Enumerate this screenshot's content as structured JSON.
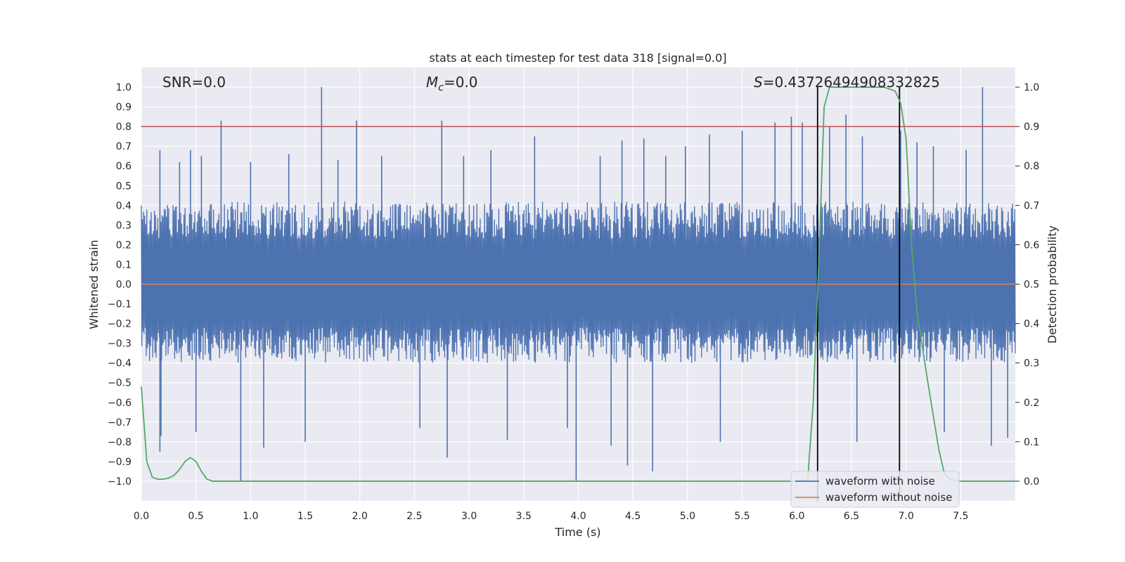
{
  "chart_data": {
    "type": "line",
    "title": "stats at each timestep for test data 318 [signal=0.0]",
    "xlabel": "Time (s)",
    "ylabel": "Whitened strain",
    "y2label": "Detection probability",
    "xlim": [
      0.0,
      8.0
    ],
    "ylim": [
      -1.1,
      1.1
    ],
    "y2lim": [
      -0.05,
      1.05
    ],
    "x_ticks": [
      0.0,
      0.5,
      1.0,
      1.5,
      2.0,
      2.5,
      3.0,
      3.5,
      4.0,
      4.5,
      5.0,
      5.5,
      6.0,
      6.5,
      7.0,
      7.5
    ],
    "x_tick_labels": [
      "0.0",
      "0.5",
      "1.0",
      "1.5",
      "2.0",
      "2.5",
      "3.0",
      "3.5",
      "4.0",
      "4.5",
      "5.0",
      "5.5",
      "6.0",
      "6.5",
      "7.0",
      "7.5"
    ],
    "y_ticks": [
      1.0,
      0.9,
      0.8,
      0.7,
      0.6,
      0.5,
      0.4,
      0.3,
      0.2,
      0.1,
      0.0,
      -0.1,
      -0.2,
      -0.3,
      -0.4,
      -0.5,
      -0.6,
      -0.7,
      -0.8,
      -0.9,
      -1.0
    ],
    "y_tick_labels": [
      "1.0",
      "0.9",
      "0.8",
      "0.7",
      "0.6",
      "0.5",
      "0.4",
      "0.3",
      "0.2",
      "0.1",
      "0.0",
      "−0.1",
      "−0.2",
      "−0.3",
      "−0.4",
      "−0.5",
      "−0.6",
      "−0.7",
      "−0.8",
      "−0.9",
      "−1.0"
    ],
    "y2_ticks": [
      1.0,
      0.9,
      0.8,
      0.7,
      0.6,
      0.5,
      0.4,
      0.3,
      0.2,
      0.1,
      0.0
    ],
    "y2_tick_labels": [
      "1.0",
      "0.9",
      "0.8",
      "0.7",
      "0.6",
      "0.5",
      "0.4",
      "0.3",
      "0.2",
      "0.1",
      "0.0"
    ],
    "annotations": {
      "snr": "SNR=0.0",
      "mc_symbol": "M",
      "mc_subscript": "c",
      "mc_value": "=0.0",
      "s_symbol": "S",
      "s_value": "=0.43726494908332825"
    },
    "threshold": {
      "value": 0.8,
      "color": "#c44e52"
    },
    "zero_line": {
      "value": 0.0,
      "color": "#dd8452"
    },
    "detection_window": {
      "start": 6.19,
      "end": 6.94,
      "color": "#000000"
    },
    "series": [
      {
        "name": "waveform with noise",
        "color": "#4c72b0",
        "kind": "noise",
        "band_max": 0.42,
        "band_min": -0.4,
        "spikes": [
          [
            0.17,
            0.68
          ],
          [
            0.17,
            -0.85
          ],
          [
            0.18,
            -0.77
          ],
          [
            0.35,
            0.62
          ],
          [
            0.45,
            0.68
          ],
          [
            0.5,
            -0.75
          ],
          [
            0.55,
            0.65
          ],
          [
            0.73,
            0.83
          ],
          [
            0.91,
            -1.0
          ],
          [
            1.0,
            0.62
          ],
          [
            1.12,
            -0.83
          ],
          [
            1.35,
            0.66
          ],
          [
            1.5,
            -0.8
          ],
          [
            1.65,
            1.0
          ],
          [
            1.8,
            0.63
          ],
          [
            1.97,
            0.83
          ],
          [
            2.2,
            0.65
          ],
          [
            2.55,
            -0.73
          ],
          [
            2.75,
            0.83
          ],
          [
            2.8,
            -0.88
          ],
          [
            2.95,
            0.65
          ],
          [
            3.2,
            0.68
          ],
          [
            3.35,
            -0.79
          ],
          [
            3.6,
            0.75
          ],
          [
            3.9,
            -0.73
          ],
          [
            3.98,
            -1.0
          ],
          [
            4.2,
            0.65
          ],
          [
            4.3,
            -0.82
          ],
          [
            4.4,
            0.73
          ],
          [
            4.45,
            -0.92
          ],
          [
            4.6,
            0.74
          ],
          [
            4.68,
            -0.95
          ],
          [
            4.8,
            0.65
          ],
          [
            4.98,
            0.7
          ],
          [
            5.2,
            0.76
          ],
          [
            5.3,
            -0.8
          ],
          [
            5.5,
            0.78
          ],
          [
            5.8,
            0.82
          ],
          [
            5.95,
            0.85
          ],
          [
            6.05,
            0.82
          ],
          [
            6.3,
            0.8
          ],
          [
            6.45,
            0.86
          ],
          [
            6.55,
            -0.8
          ],
          [
            6.6,
            0.75
          ],
          [
            6.95,
            0.78
          ],
          [
            7.1,
            0.72
          ],
          [
            7.25,
            0.7
          ],
          [
            7.35,
            -0.75
          ],
          [
            7.55,
            0.68
          ],
          [
            7.7,
            1.0
          ],
          [
            7.78,
            -0.82
          ],
          [
            7.93,
            -0.78
          ]
        ]
      },
      {
        "name": "waveform without noise",
        "color": "#dd8452",
        "kind": "flat",
        "value": 0.0
      },
      {
        "name": "detection probability",
        "color": "#55a868",
        "kind": "line",
        "axis": "right",
        "x": [
          0.0,
          0.05,
          0.1,
          0.15,
          0.2,
          0.25,
          0.3,
          0.35,
          0.4,
          0.45,
          0.5,
          0.55,
          0.6,
          0.65,
          0.7,
          0.75,
          1.0,
          2.0,
          3.0,
          4.0,
          5.0,
          6.0,
          6.1,
          6.15,
          6.2,
          6.25,
          6.3,
          6.5,
          6.8,
          6.9,
          6.95,
          7.0,
          7.05,
          7.1,
          7.2,
          7.3,
          7.35,
          7.4,
          7.5,
          7.6,
          7.7,
          8.0
        ],
        "y": [
          0.24,
          0.05,
          0.01,
          0.005,
          0.005,
          0.008,
          0.015,
          0.03,
          0.05,
          0.06,
          0.05,
          0.025,
          0.005,
          0.0,
          0.0,
          0.0,
          0.0,
          0.0,
          0.0,
          0.0,
          0.0,
          0.0,
          0.005,
          0.2,
          0.55,
          0.95,
          1.0,
          1.0,
          1.0,
          0.99,
          0.96,
          0.87,
          0.6,
          0.43,
          0.25,
          0.08,
          0.02,
          0.005,
          0.0,
          0.0,
          0.0,
          0.0
        ]
      }
    ],
    "legend_position": "lower-right",
    "legend": [
      "waveform with noise",
      "waveform without noise"
    ]
  }
}
